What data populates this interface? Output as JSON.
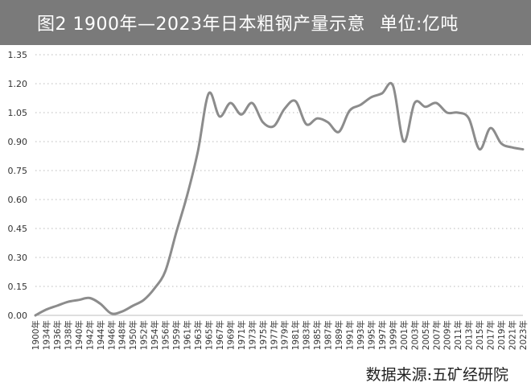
{
  "header": {
    "title": "图2 1900年—2023年日本粗钢产量示意",
    "unit": "单位:亿吨"
  },
  "source": "数据来源:五矿经研院",
  "colors": {
    "title_bg": "#7a7a7a",
    "line": "#8c8c8c",
    "grid": "#c8c8c8",
    "text": "#333333"
  },
  "chart_data": {
    "type": "line",
    "title": "图2 1900年—2023年日本粗钢产量示意",
    "xlabel": "",
    "ylabel": "单位:亿吨",
    "ylim": [
      0,
      1.35
    ],
    "grid": "horizontal-dotted",
    "yticks": [
      "0.00",
      "0.15",
      "0.30",
      "0.45",
      "0.60",
      "0.75",
      "0.90",
      "1.05",
      "1.20",
      "1.35"
    ],
    "xticks": [
      "1900年",
      "1934年",
      "1936年",
      "1938年",
      "1940年",
      "1942年",
      "1944年",
      "1946年",
      "1948年",
      "1950年",
      "1952年",
      "1954年",
      "1956年",
      "1959年",
      "1961年",
      "1963年",
      "1965年",
      "1967年",
      "1969年",
      "1971年",
      "1973年",
      "1975年",
      "1977年",
      "1979年",
      "1981年",
      "1983年",
      "1985年",
      "1987年",
      "1989年",
      "1991年",
      "1993年",
      "1995年",
      "1997年",
      "1999年",
      "2001年",
      "2003年",
      "2005年",
      "2007年",
      "2009年",
      "2011年",
      "2013年",
      "2015年",
      "2017年",
      "2019年",
      "2021年",
      "2023年"
    ],
    "series": [
      {
        "name": "",
        "values": [
          0.0,
          0.03,
          0.05,
          0.07,
          0.08,
          0.09,
          0.06,
          0.01,
          0.02,
          0.05,
          0.08,
          0.14,
          0.23,
          0.43,
          0.62,
          0.85,
          1.15,
          1.03,
          1.1,
          1.04,
          1.1,
          1.0,
          0.98,
          1.07,
          1.11,
          0.99,
          1.02,
          1.0,
          0.95,
          1.06,
          1.09,
          1.13,
          1.15,
          1.19,
          0.9,
          1.1,
          1.08,
          1.1,
          1.05,
          1.05,
          1.02,
          0.86,
          0.97,
          0.89,
          0.87,
          0.86
        ]
      }
    ]
  }
}
